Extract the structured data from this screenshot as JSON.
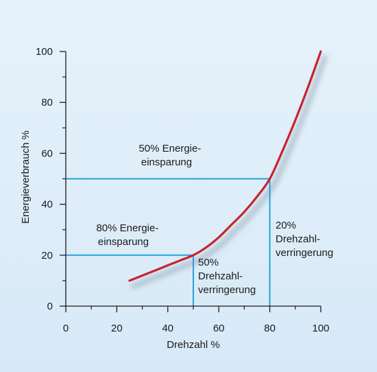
{
  "chart_data": {
    "type": "line",
    "xlabel": "Drehzahl %",
    "ylabel": "Energieverbrauch %",
    "xlim": [
      0,
      100
    ],
    "ylim": [
      0,
      100
    ],
    "x_ticks": [
      0,
      20,
      40,
      60,
      80,
      100
    ],
    "y_ticks": [
      0,
      20,
      40,
      60,
      80,
      100
    ],
    "x_minor_step": 10,
    "y_minor_step": 10,
    "grid": false,
    "series": [
      {
        "color": "#c8232b",
        "x": [
          25,
          30,
          35,
          40,
          45,
          50,
          55,
          60,
          65,
          70,
          75,
          80,
          85,
          90,
          95,
          100
        ],
        "y": [
          10,
          12,
          14,
          16,
          18,
          20,
          23,
          27,
          32,
          37,
          43,
          50,
          61,
          73,
          86,
          100
        ]
      }
    ],
    "reference_lines": [
      {
        "x": 80,
        "y": 50,
        "color": "#1fa3dc"
      },
      {
        "x": 50,
        "y": 20,
        "color": "#1fa3dc"
      }
    ],
    "annotations": [
      {
        "lines": [
          "50% Energie-",
          "einsparung"
        ]
      },
      {
        "lines": [
          "80% Energie-",
          "einsparung"
        ]
      },
      {
        "lines": [
          "20%",
          "Drehzahl-",
          "verringerung"
        ]
      },
      {
        "lines": [
          "50%",
          "Drehzahl-",
          "verringerung"
        ]
      }
    ],
    "colors": {
      "axis": "#1a1a1a",
      "curve": "#c8232b",
      "reference": "#1fa3dc",
      "background": "#dfeef9"
    }
  }
}
